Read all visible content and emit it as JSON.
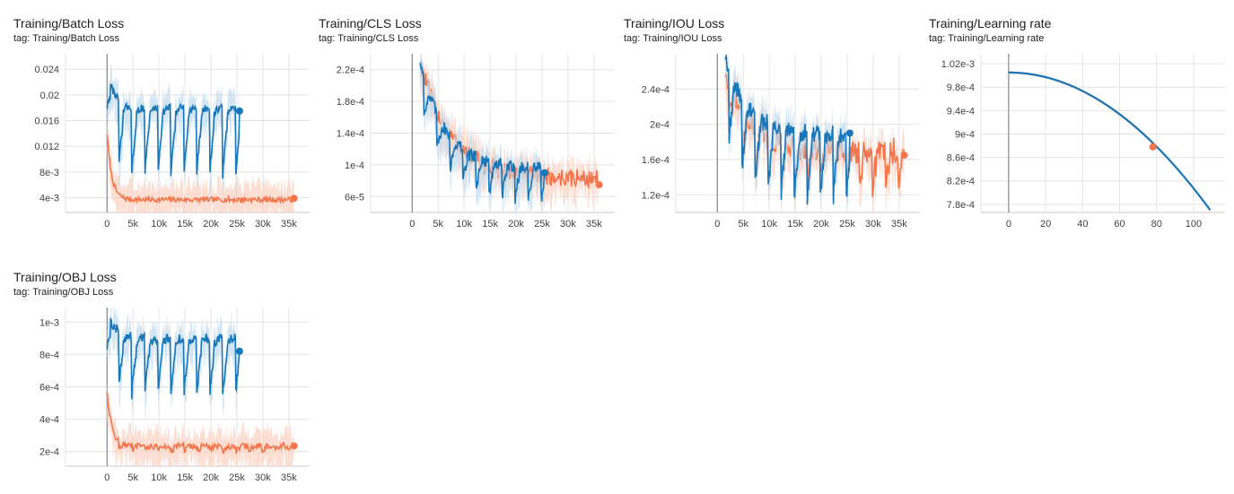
{
  "colors": {
    "orange": "#f4754a",
    "orange_band": "#fbd3c4",
    "blue": "#1777b9",
    "blue_band": "#c4dcee",
    "grid": "#e3e3e3",
    "axis": "#888888"
  },
  "charts": [
    {
      "title": "Training/Batch Loss",
      "tag": "tag: Training/Batch Loss",
      "chart_data": {
        "type": "line",
        "x_ticks": [
          "0",
          "5k",
          "10k",
          "15k",
          "20k",
          "25k",
          "30k",
          "35k"
        ],
        "y_ticks": [
          "4e-3",
          "8e-3",
          "0.012",
          "0.016",
          "0.02",
          "0.024"
        ],
        "xlim": [
          -8000,
          39000
        ],
        "ylim": [
          0.0017,
          0.0264
        ],
        "series": [
          {
            "color": "orange",
            "start": 0,
            "end": 36000,
            "init": 0.014,
            "floor": 0.0037,
            "decay": 900,
            "noise": 0.0004,
            "end_value": 0.0039,
            "saw": 0
          },
          {
            "color": "blue",
            "start": 0,
            "end": 25500,
            "init": 0.026,
            "floor": 0.018,
            "decay": 1200,
            "noise": 0.0006,
            "end_value": 0.0175,
            "saw": 0.012,
            "period": 2500
          }
        ]
      }
    },
    {
      "title": "Training/CLS Loss",
      "tag": "tag: Training/CLS Loss",
      "chart_data": {
        "type": "line",
        "x_ticks": [
          "0",
          "5k",
          "10k",
          "15k",
          "20k",
          "25k",
          "30k",
          "35k"
        ],
        "y_ticks": [
          "6e-5",
          "1e-4",
          "1.4e-4",
          "1.8e-4",
          "2.2e-4"
        ],
        "xlim": [
          -8000,
          39000
        ],
        "ylim": [
          4e-05,
          0.00024
        ],
        "series": [
          {
            "color": "orange",
            "start": 1500,
            "end": 36000,
            "init": 0.00023,
            "floor": 8.2e-05,
            "decay": 6000,
            "noise": 1.2e-05,
            "end_value": 7.5e-05,
            "saw": 0
          },
          {
            "color": "blue",
            "start": 1500,
            "end": 25500,
            "init": 0.00023,
            "floor": 9.5e-05,
            "decay": 5000,
            "noise": 8e-06,
            "end_value": 9e-05,
            "saw": 5e-05,
            "period": 2500
          }
        ]
      }
    },
    {
      "title": "Training/IOU Loss",
      "tag": "tag: Training/IOU Loss",
      "chart_data": {
        "type": "line",
        "x_ticks": [
          "0",
          "5k",
          "10k",
          "15k",
          "20k",
          "25k",
          "30k",
          "35k"
        ],
        "y_ticks": [
          "1.2e-4",
          "1.6e-4",
          "2e-4",
          "2.4e-4"
        ],
        "xlim": [
          -8000,
          39000
        ],
        "ylim": [
          0.0001,
          0.00028
        ],
        "series": [
          {
            "color": "orange",
            "start": 1500,
            "end": 36000,
            "init": 0.00026,
            "floor": 0.00017,
            "decay": 5000,
            "noise": 1.5e-05,
            "end_value": 0.000165,
            "saw": 5e-05,
            "period": 2500
          },
          {
            "color": "blue",
            "start": 1500,
            "end": 25500,
            "init": 0.00028,
            "floor": 0.00019,
            "decay": 4000,
            "noise": 1e-05,
            "end_value": 0.00019,
            "saw": 9e-05,
            "period": 2500
          }
        ]
      }
    },
    {
      "title": "Training/Learning rate",
      "tag": "tag: Training/Learning rate",
      "chart_data": {
        "type": "line",
        "x_ticks": [
          "0",
          "20",
          "40",
          "60",
          "80",
          "100"
        ],
        "y_ticks": [
          "7.8e-4",
          "8.2e-4",
          "8.6e-4",
          "9e-4",
          "9.4e-4",
          "9.8e-4",
          "1.02e-3"
        ],
        "xlim": [
          -15,
          117
        ],
        "ylim": [
          0.000766,
          0.001037
        ],
        "series": [
          {
            "color": "orange",
            "kind": "cos",
            "start": 0,
            "end": 78,
            "end_value": 0.000878
          },
          {
            "color": "blue",
            "kind": "cos",
            "start": 0,
            "end": 109
          }
        ]
      }
    },
    {
      "title": "Training/OBJ Loss",
      "tag": "tag: Training/OBJ Loss",
      "chart_data": {
        "type": "line",
        "x_ticks": [
          "0",
          "5k",
          "10k",
          "15k",
          "20k",
          "25k",
          "30k",
          "35k"
        ],
        "y_ticks": [
          "2e-4",
          "4e-4",
          "6e-4",
          "8e-4",
          "1e-3"
        ],
        "xlim": [
          -8000,
          39000
        ],
        "ylim": [
          0.00011,
          0.00109
        ],
        "series": [
          {
            "color": "orange",
            "start": 0,
            "end": 36000,
            "init": 0.0006,
            "floor": 0.000235,
            "decay": 900,
            "noise": 2e-05,
            "end_value": 0.000235,
            "saw": 4e-05,
            "period": 2500
          },
          {
            "color": "blue",
            "start": 0,
            "end": 25500,
            "init": 0.0011,
            "floor": 0.0009,
            "decay": 1500,
            "noise": 3e-05,
            "end_value": 0.00082,
            "saw": 0.0004,
            "period": 2500
          }
        ]
      }
    }
  ]
}
